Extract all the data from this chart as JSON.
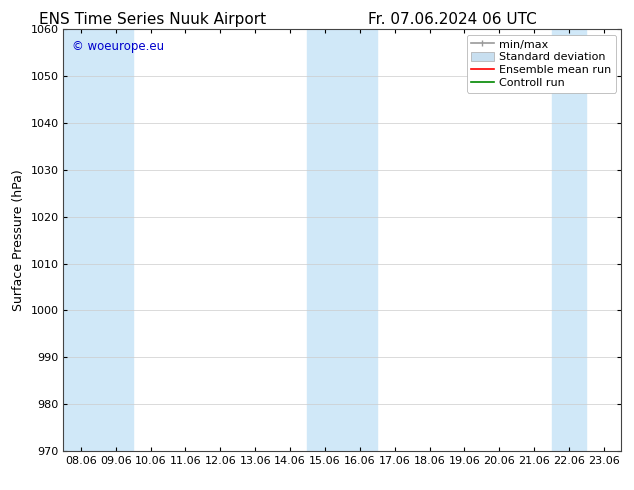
{
  "title_left": "ENS Time Series Nuuk Airport",
  "title_right": "Fr. 07.06.2024 06 UTC",
  "ylabel": "Surface Pressure (hPa)",
  "ylim": [
    970,
    1060
  ],
  "yticks": [
    970,
    980,
    990,
    1000,
    1010,
    1020,
    1030,
    1040,
    1050,
    1060
  ],
  "xtick_labels": [
    "08.06",
    "09.06",
    "10.06",
    "11.06",
    "12.06",
    "13.06",
    "14.06",
    "15.06",
    "16.06",
    "17.06",
    "18.06",
    "19.06",
    "20.06",
    "21.06",
    "22.06",
    "23.06"
  ],
  "watermark": "© woeurope.eu",
  "watermark_color": "#0000cc",
  "band_color": "#d0e8f8",
  "shaded_bands": [
    {
      "x_start": "08.06",
      "x_end": "10.06"
    },
    {
      "x_start": "15.06",
      "x_end": "17.06"
    },
    {
      "x_start": "22.06",
      "x_end": "23.06"
    }
  ],
  "legend_labels": [
    "min/max",
    "Standard deviation",
    "Ensemble mean run",
    "Controll run"
  ],
  "legend_minmax_color": "#999999",
  "legend_std_color": "#c8dff0",
  "legend_ens_color": "#ff0000",
  "legend_ctrl_color": "#008800",
  "background_color": "#ffffff",
  "grid_color": "#cccccc",
  "title_fontsize": 11,
  "tick_fontsize": 8,
  "ylabel_fontsize": 9,
  "legend_fontsize": 8
}
